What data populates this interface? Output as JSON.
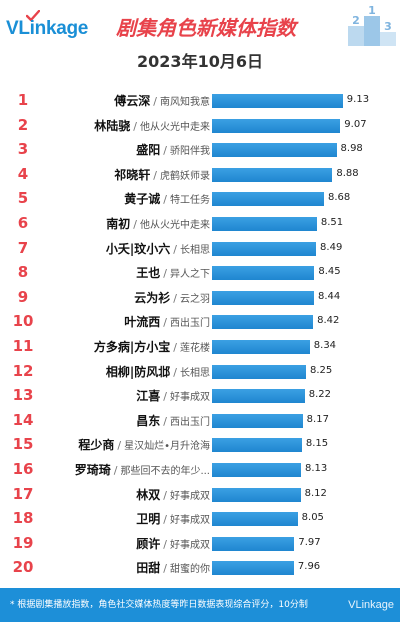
{
  "header": {
    "logo": "VLinkage",
    "title": "剧集角色新媒体指数",
    "podium_digits": [
      "2",
      "1",
      "3"
    ],
    "date": "2023年10月6日"
  },
  "colors": {
    "brand": "#1a8fd6",
    "title": "#e8434b",
    "rank": "#e8434b",
    "bar": "#1f86d0",
    "footer": "#1d8fd8"
  },
  "chart_data": {
    "type": "bar",
    "orientation": "horizontal",
    "title": "剧集角色新媒体指数",
    "date": "2023年10月6日",
    "xlim": [
      0,
      10
    ],
    "grid": false,
    "legend": "none",
    "rows": [
      {
        "rank": "1",
        "actor": "傅云深",
        "drama": "南风知我意",
        "value": 9.13
      },
      {
        "rank": "2",
        "actor": "林陆骁",
        "drama": "他从火光中走来",
        "value": 9.07
      },
      {
        "rank": "3",
        "actor": "盛阳",
        "drama": "骄阳伴我",
        "value": 8.98
      },
      {
        "rank": "4",
        "actor": "祁晓轩",
        "drama": "虎鹤妖师录",
        "value": 8.88
      },
      {
        "rank": "5",
        "actor": "黄子诚",
        "drama": "特工任务",
        "value": 8.68
      },
      {
        "rank": "6",
        "actor": "南初",
        "drama": "他从火光中走来",
        "value": 8.51
      },
      {
        "rank": "7",
        "actor": "小夭|玟小六",
        "drama": "长相思",
        "value": 8.49
      },
      {
        "rank": "8",
        "actor": "王也",
        "drama": "异人之下",
        "value": 8.45
      },
      {
        "rank": "9",
        "actor": "云为衫",
        "drama": "云之羽",
        "value": 8.44
      },
      {
        "rank": "10",
        "actor": "叶流西",
        "drama": "西出玉门",
        "value": 8.42
      },
      {
        "rank": "11",
        "actor": "方多病|方小宝",
        "drama": "莲花楼",
        "value": 8.34
      },
      {
        "rank": "12",
        "actor": "相柳|防风邶",
        "drama": "长相思",
        "value": 8.25
      },
      {
        "rank": "13",
        "actor": "江喜",
        "drama": "好事成双",
        "value": 8.22
      },
      {
        "rank": "14",
        "actor": "昌东",
        "drama": "西出玉门",
        "value": 8.17
      },
      {
        "rank": "15",
        "actor": "程少商",
        "drama": "星汉灿烂•月升沧海",
        "value": 8.15
      },
      {
        "rank": "16",
        "actor": "罗琦琦",
        "drama": "那些回不去的年少...",
        "value": 8.13
      },
      {
        "rank": "17",
        "actor": "林双",
        "drama": "好事成双",
        "value": 8.12
      },
      {
        "rank": "18",
        "actor": "卫明",
        "drama": "好事成双",
        "value": 8.05
      },
      {
        "rank": "19",
        "actor": "顾许",
        "drama": "好事成双",
        "value": 7.97
      },
      {
        "rank": "20",
        "actor": "田甜",
        "drama": "甜蜜的你",
        "value": 7.96
      }
    ]
  },
  "footer": {
    "note": "* 根据剧集播放指数，角色社交媒体热度等昨日数据表现综合评分，10分制",
    "watermark": "VLinkage"
  }
}
